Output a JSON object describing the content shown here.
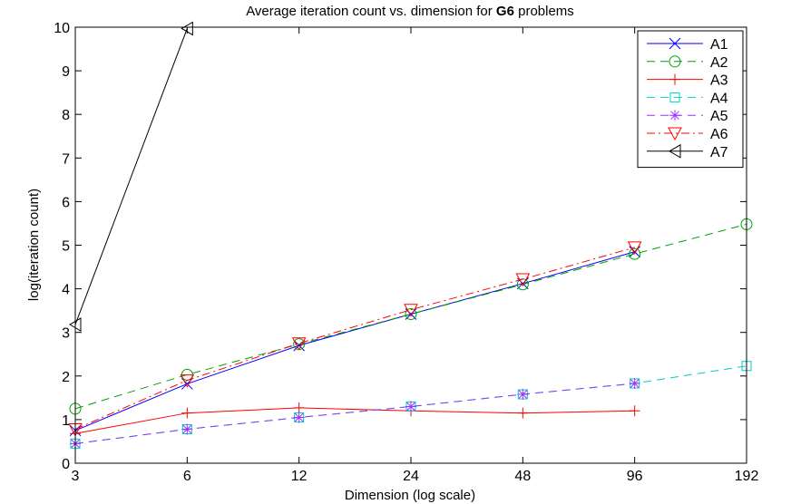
{
  "chart_data": {
    "type": "line",
    "title_prefix": "Average iteration count vs. dimension for ",
    "title_bold": "G6",
    "title_suffix": " problems",
    "xlabel": "Dimension (log scale)",
    "ylabel": "log(iteration count)",
    "x_scale": "log2",
    "xlim": [
      3,
      192
    ],
    "ylim": [
      0,
      10
    ],
    "xticks": [
      3,
      6,
      12,
      24,
      48,
      96,
      192
    ],
    "xtick_labels": [
      "3",
      "6",
      "12",
      "24",
      "48",
      "96",
      "192"
    ],
    "yticks": [
      0,
      1,
      2,
      3,
      4,
      5,
      6,
      7,
      8,
      9,
      10
    ],
    "ytick_labels": [
      "0",
      "1",
      "2",
      "3",
      "4",
      "5",
      "6",
      "7",
      "8",
      "9",
      "10"
    ],
    "grid": false,
    "legend_position": "top-right",
    "series": [
      {
        "name": "A1",
        "color": "#0000ff",
        "dash": "",
        "marker": "x",
        "x": [
          3,
          6,
          12,
          24,
          48,
          96
        ],
        "values": [
          0.75,
          1.82,
          2.7,
          3.42,
          4.12,
          4.85
        ]
      },
      {
        "name": "A2",
        "color": "#00a000",
        "dash": "9,6",
        "marker": "circle",
        "x": [
          3,
          6,
          12,
          24,
          48,
          96,
          192
        ],
        "values": [
          1.25,
          2.03,
          2.73,
          3.42,
          4.1,
          4.8,
          5.48
        ]
      },
      {
        "name": "A3",
        "color": "#ff0000",
        "dash": "",
        "marker": "plus",
        "x": [
          3,
          6,
          12,
          24,
          48,
          96
        ],
        "values": [
          0.68,
          1.15,
          1.27,
          1.2,
          1.15,
          1.2
        ]
      },
      {
        "name": "A4",
        "color": "#00cccc",
        "dash": "9,6",
        "marker": "square",
        "x": [
          3,
          6,
          12,
          24,
          48,
          96,
          192
        ],
        "values": [
          0.45,
          0.78,
          1.05,
          1.3,
          1.58,
          1.83,
          2.23
        ]
      },
      {
        "name": "A5",
        "color": "#9933ff",
        "dash": "9,6",
        "marker": "star",
        "x": [
          3,
          6,
          12,
          24,
          48,
          96
        ],
        "values": [
          0.45,
          0.78,
          1.05,
          1.3,
          1.58,
          1.83
        ]
      },
      {
        "name": "A6",
        "color": "#ff0000",
        "dash": "9,4,2,4",
        "marker": "triangle-down",
        "x": [
          3,
          6,
          12,
          24,
          48,
          96
        ],
        "values": [
          0.78,
          1.9,
          2.75,
          3.52,
          4.22,
          4.95
        ]
      },
      {
        "name": "A7",
        "color": "#000000",
        "dash": "",
        "marker": "triangle-left",
        "x": [
          3,
          6
        ],
        "values": [
          3.18,
          9.97
        ]
      }
    ]
  }
}
